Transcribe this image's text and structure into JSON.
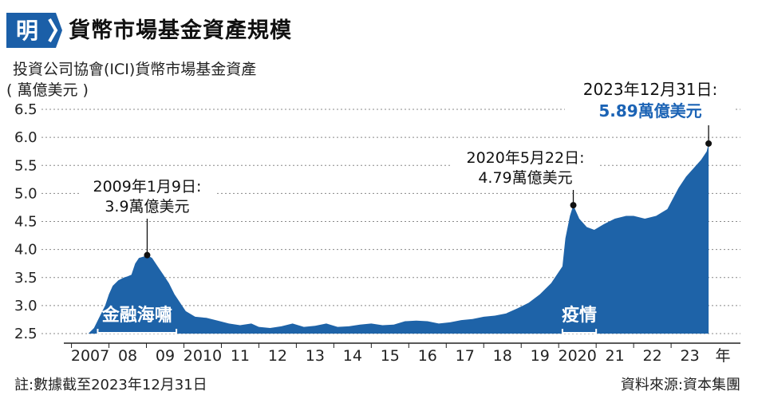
{
  "header": {
    "logo_glyph": "明",
    "title": "貨幣市場基金資產規模",
    "subtitle": "投資公司協會(ICI)貨幣市場基金資產",
    "unit": "( 萬億美元 )"
  },
  "footer": {
    "note": "註:數據截至2023年12月31日",
    "source": "資料來源:資本集團"
  },
  "colors": {
    "area": "#1e63a8",
    "logo": "#1b5fa8",
    "highlight": "#1b63b5",
    "grid": "#888888"
  },
  "chart_data": {
    "type": "area",
    "ylim": [
      2.5,
      6.5
    ],
    "yticks": [
      "6.5",
      "6.0",
      "5.5",
      "5.0",
      "4.5",
      "4.0",
      "3.5",
      "3.0",
      "2.5"
    ],
    "xlim": [
      2007.0,
      2024.0
    ],
    "xtick_labels": [
      "2007",
      "08",
      "09",
      "2010",
      "11",
      "12",
      "13",
      "14",
      "15",
      "16",
      "17",
      "18",
      "19",
      "2020",
      "21",
      "22",
      "23",
      "年"
    ],
    "grid": "horizontal-dotted",
    "series": [
      {
        "points": [
          [
            2007.45,
            2.5
          ],
          [
            2007.6,
            2.6
          ],
          [
            2007.75,
            2.8
          ],
          [
            2007.9,
            3.0
          ],
          [
            2008.0,
            3.2
          ],
          [
            2008.1,
            3.35
          ],
          [
            2008.25,
            3.45
          ],
          [
            2008.4,
            3.5
          ],
          [
            2008.5,
            3.52
          ],
          [
            2008.6,
            3.55
          ],
          [
            2008.7,
            3.75
          ],
          [
            2008.8,
            3.85
          ],
          [
            2008.95,
            3.88
          ],
          [
            2009.02,
            3.9
          ],
          [
            2009.15,
            3.85
          ],
          [
            2009.3,
            3.7
          ],
          [
            2009.45,
            3.55
          ],
          [
            2009.6,
            3.4
          ],
          [
            2009.75,
            3.2
          ],
          [
            2009.9,
            3.05
          ],
          [
            2010.05,
            2.9
          ],
          [
            2010.3,
            2.8
          ],
          [
            2010.6,
            2.78
          ],
          [
            2010.9,
            2.73
          ],
          [
            2011.2,
            2.68
          ],
          [
            2011.5,
            2.65
          ],
          [
            2011.8,
            2.68
          ],
          [
            2012.0,
            2.62
          ],
          [
            2012.3,
            2.6
          ],
          [
            2012.6,
            2.63
          ],
          [
            2012.9,
            2.68
          ],
          [
            2013.2,
            2.62
          ],
          [
            2013.5,
            2.64
          ],
          [
            2013.8,
            2.68
          ],
          [
            2014.1,
            2.62
          ],
          [
            2014.4,
            2.63
          ],
          [
            2014.7,
            2.66
          ],
          [
            2015.0,
            2.68
          ],
          [
            2015.3,
            2.65
          ],
          [
            2015.6,
            2.66
          ],
          [
            2015.9,
            2.72
          ],
          [
            2016.2,
            2.73
          ],
          [
            2016.5,
            2.72
          ],
          [
            2016.8,
            2.68
          ],
          [
            2017.1,
            2.7
          ],
          [
            2017.4,
            2.74
          ],
          [
            2017.7,
            2.76
          ],
          [
            2018.0,
            2.8
          ],
          [
            2018.3,
            2.82
          ],
          [
            2018.6,
            2.86
          ],
          [
            2018.9,
            2.95
          ],
          [
            2019.2,
            3.05
          ],
          [
            2019.5,
            3.2
          ],
          [
            2019.8,
            3.4
          ],
          [
            2020.0,
            3.6
          ],
          [
            2020.1,
            3.7
          ],
          [
            2020.18,
            4.2
          ],
          [
            2020.3,
            4.6
          ],
          [
            2020.39,
            4.79
          ],
          [
            2020.55,
            4.55
          ],
          [
            2020.75,
            4.4
          ],
          [
            2020.95,
            4.35
          ],
          [
            2021.2,
            4.45
          ],
          [
            2021.5,
            4.55
          ],
          [
            2021.8,
            4.6
          ],
          [
            2022.0,
            4.6
          ],
          [
            2022.3,
            4.55
          ],
          [
            2022.6,
            4.6
          ],
          [
            2022.9,
            4.72
          ],
          [
            2023.2,
            5.1
          ],
          [
            2023.4,
            5.3
          ],
          [
            2023.6,
            5.45
          ],
          [
            2023.8,
            5.6
          ],
          [
            2023.95,
            5.75
          ],
          [
            2024.0,
            5.89
          ]
        ]
      }
    ],
    "annotations": [
      {
        "x": 2009.02,
        "y": 3.9,
        "lines": [
          "2009年1月9日:",
          "3.9萬億美元"
        ]
      },
      {
        "x": 2020.39,
        "y": 4.79,
        "lines": [
          "2020年5月22日:",
          "4.79萬億美元"
        ]
      },
      {
        "x": 2024.0,
        "y": 5.89,
        "lines": [
          "2023年12月31日:",
          "5.89萬億美元"
        ]
      }
    ],
    "events": [
      {
        "label": "金融海嘯",
        "start": 2007.7,
        "end": 2009.8
      },
      {
        "label": "疫情",
        "start": 2020.1,
        "end": 2021.0
      }
    ]
  }
}
